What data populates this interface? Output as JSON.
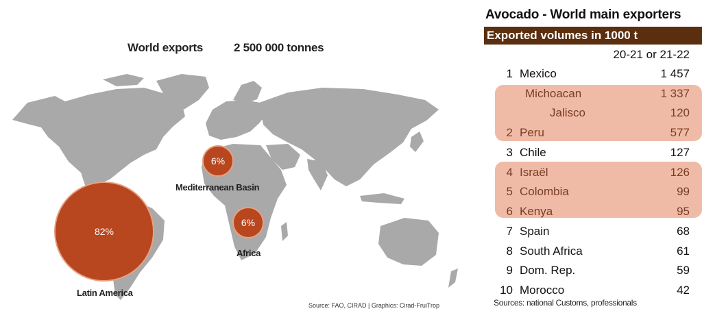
{
  "map": {
    "title_label": "World exports",
    "title_value": "2 500 000 tonnes",
    "source": "Source: FAO, CIRAD | Graphics: Cirad-FruiTrop",
    "colors": {
      "land": "#a9a9a9",
      "bubble": "#b8461e",
      "bubble_stroke": "#e8a080"
    }
  },
  "chart_data": [
    {
      "type": "bubble-map",
      "title": "World exports",
      "total": "2 500 000 tonnes",
      "series": [
        {
          "name": "Latin America",
          "value": 82,
          "label": "82%"
        },
        {
          "name": "Mediterranean Basin",
          "value": 6,
          "label": "6%"
        },
        {
          "name": "Africa",
          "value": 6,
          "label": "6%"
        }
      ]
    },
    {
      "type": "table",
      "title": "Avocado - World main exporters",
      "subtitle": "Exported volumes in  1000 t",
      "column_header": "20-21 or 21-22",
      "rows": [
        {
          "rank": "1",
          "name": "Mexico",
          "value": "1 457",
          "style": "norm"
        },
        {
          "rank": "",
          "name": "Michoacan",
          "value": "1 337",
          "style": "hl sub"
        },
        {
          "rank": "",
          "name": "Jalisco",
          "value": "120",
          "style": "hl sub2"
        },
        {
          "rank": "2",
          "name": "Peru",
          "value": "577",
          "style": "hl"
        },
        {
          "rank": "3",
          "name": "Chile",
          "value": "127",
          "style": "norm"
        },
        {
          "rank": "4",
          "name": "Israël",
          "value": "126",
          "style": "hl"
        },
        {
          "rank": "5",
          "name": "Colombia",
          "value": "99",
          "style": "hl"
        },
        {
          "rank": "6",
          "name": "Kenya",
          "value": "95",
          "style": "hl"
        },
        {
          "rank": "7",
          "name": "Spain",
          "value": "68",
          "style": "norm"
        },
        {
          "rank": "8",
          "name": "South Africa",
          "value": "61",
          "style": "norm"
        },
        {
          "rank": "9",
          "name": "Dom. Rep.",
          "value": "59",
          "style": "norm"
        },
        {
          "rank": "10",
          "name": "Morocco",
          "value": "42",
          "style": "norm"
        }
      ],
      "source": "Sources: national Customs, professionals"
    }
  ]
}
